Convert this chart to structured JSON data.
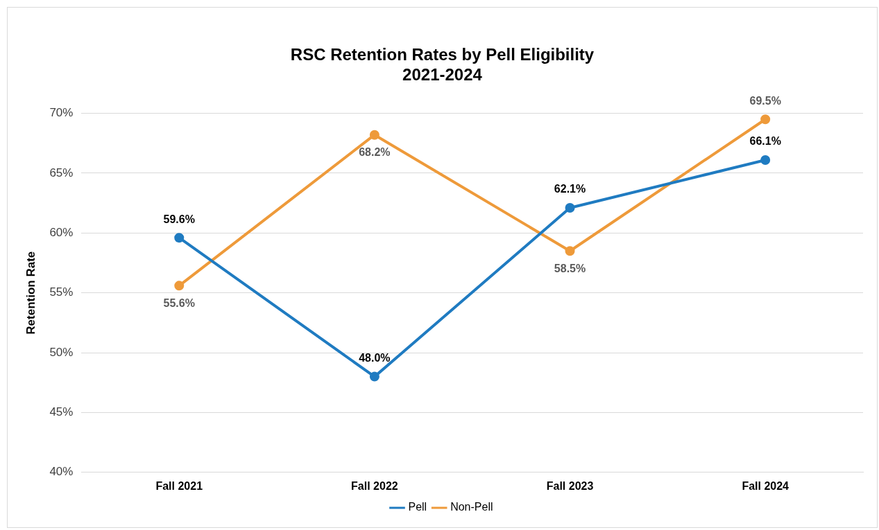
{
  "chart_data": {
    "type": "line",
    "title": "RSC Retention Rates by Pell Eligibility",
    "subtitle": "2021-2024",
    "ylabel": "Retention Rate",
    "categories": [
      "Fall 2021",
      "Fall 2022",
      "Fall 2023",
      "Fall 2024"
    ],
    "series": [
      {
        "name": "Pell",
        "color": "#1f7bc1",
        "values": [
          59.6,
          48.0,
          62.1,
          66.1
        ],
        "value_labels": [
          "59.6%",
          "48.0%",
          "62.1%",
          "66.1%"
        ]
      },
      {
        "name": "Non-Pell",
        "color": "#ee9a3a",
        "values": [
          55.6,
          68.2,
          58.5,
          69.5
        ],
        "value_labels": [
          "55.6%",
          "68.2%",
          "58.5%",
          "69.5%"
        ]
      }
    ],
    "ylim": [
      40,
      70
    ],
    "yticks": [
      {
        "value": 40,
        "label": "40%"
      },
      {
        "value": 45,
        "label": "45%"
      },
      {
        "value": 50,
        "label": "50%"
      },
      {
        "value": 55,
        "label": "55%"
      },
      {
        "value": 60,
        "label": "60%"
      },
      {
        "value": 65,
        "label": "65%"
      },
      {
        "value": 70,
        "label": "70%"
      }
    ],
    "grid": "y",
    "legend": "bottom",
    "marker": "circle",
    "line_style": "solid"
  }
}
